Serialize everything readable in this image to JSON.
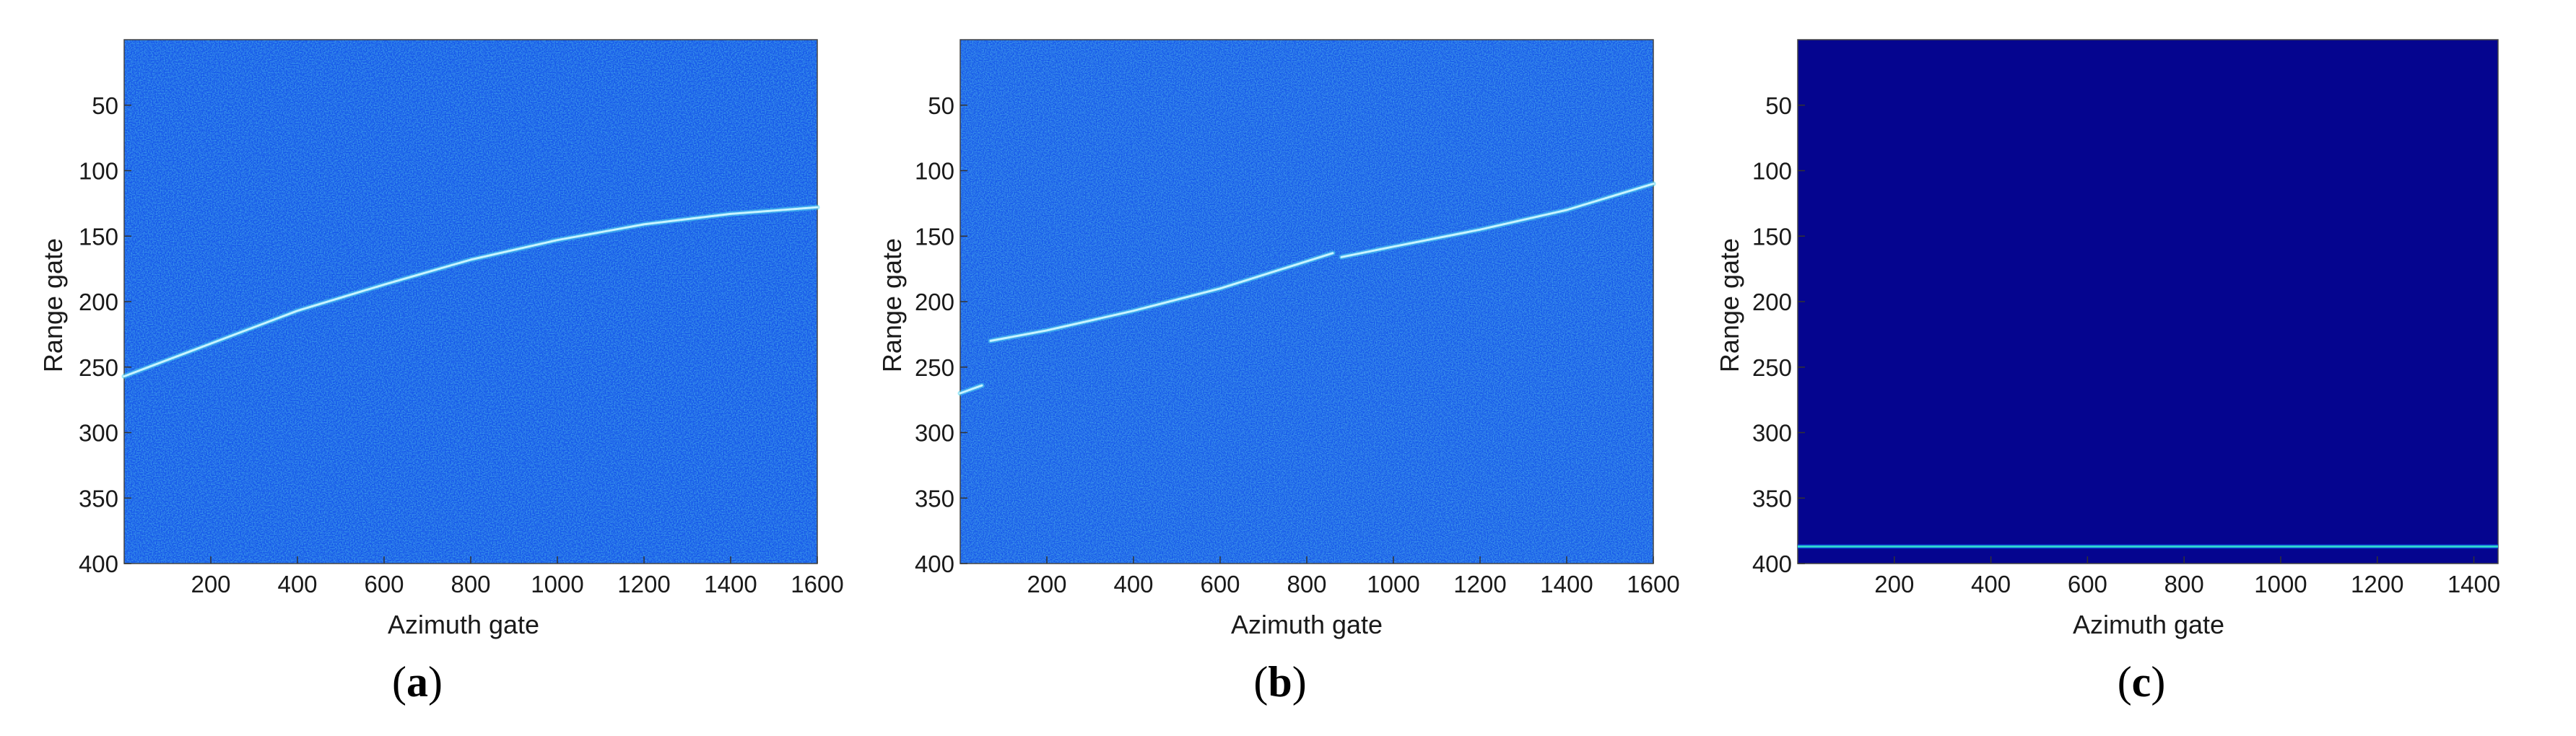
{
  "colors": {
    "background": "#ffffff",
    "noise_low": "#0a2bd8",
    "noise_mid": "#1e6cf0",
    "noise_high": "#4fd3f0",
    "track": "#c8f4ff",
    "dark_field": "#05058f",
    "edge_line": "#2fd6d0"
  },
  "chart_data": [
    {
      "type": "heatmap",
      "panel": "a",
      "caption_open": "(",
      "caption_letter": "a",
      "caption_close": ")",
      "xlabel": "Azimuth gate",
      "ylabel": "Range gate",
      "xlim": [
        0,
        1600
      ],
      "ylim": [
        400,
        0
      ],
      "y_inverted": true,
      "xticks": [
        200,
        400,
        600,
        800,
        1000,
        1200,
        1400,
        1600
      ],
      "yticks": [
        50,
        100,
        150,
        200,
        250,
        300,
        350,
        400
      ],
      "xtick_labels": [
        "200",
        "400",
        "600",
        "800",
        "1000",
        "1200",
        "1400",
        "1600"
      ],
      "ytick_labels": [
        "50",
        "100",
        "150",
        "200",
        "250",
        "300",
        "350",
        "400"
      ],
      "background_pattern": "random noise (blue speckle)",
      "colormap": "jet",
      "track": {
        "x": [
          0,
          200,
          400,
          600,
          800,
          1000,
          1200,
          1400,
          1600
        ],
        "y": [
          257,
          232,
          207,
          187,
          168,
          153,
          141,
          133,
          128
        ]
      }
    },
    {
      "type": "heatmap",
      "panel": "b",
      "caption_open": "(",
      "caption_letter": "b",
      "caption_close": ")",
      "xlabel": "Azimuth gate",
      "ylabel": "Range gate",
      "xlim": [
        0,
        1600
      ],
      "ylim": [
        400,
        0
      ],
      "y_inverted": true,
      "xticks": [
        200,
        400,
        600,
        800,
        1000,
        1200,
        1400,
        1600
      ],
      "yticks": [
        50,
        100,
        150,
        200,
        250,
        300,
        350,
        400
      ],
      "xtick_labels": [
        "200",
        "400",
        "600",
        "800",
        "1000",
        "1200",
        "1400",
        "1600"
      ],
      "ytick_labels": [
        "50",
        "100",
        "150",
        "200",
        "250",
        "300",
        "350",
        "400"
      ],
      "background_pattern": "random noise (blue speckle)",
      "colormap": "jet",
      "track_segments": [
        {
          "x": [
            0,
            50
          ],
          "y": [
            270,
            264
          ]
        },
        {
          "x": [
            70,
            200,
            400,
            600,
            860
          ],
          "y": [
            230,
            222,
            207,
            190,
            163
          ]
        },
        {
          "x": [
            880,
            1000,
            1200,
            1400,
            1600
          ],
          "y": [
            166,
            158,
            145,
            130,
            110
          ]
        }
      ]
    },
    {
      "type": "heatmap",
      "panel": "c",
      "caption_open": "(",
      "caption_letter": "c",
      "caption_close": ")",
      "xlabel": "Azimuth gate",
      "ylabel": "Range gate",
      "xlim": [
        0,
        1450
      ],
      "ylim": [
        400,
        0
      ],
      "y_inverted": true,
      "xticks": [
        200,
        400,
        600,
        800,
        1000,
        1200,
        1400
      ],
      "yticks": [
        50,
        100,
        150,
        200,
        250,
        300,
        350,
        400
      ],
      "xtick_labels": [
        "200",
        "400",
        "600",
        "800",
        "1000",
        "1200",
        "1400"
      ],
      "ytick_labels": [
        "50",
        "100",
        "150",
        "200",
        "250",
        "300",
        "350",
        "400"
      ],
      "background_pattern": "uniform dark blue",
      "colormap": "jet",
      "horizontal_line": {
        "y": 387
      }
    }
  ]
}
